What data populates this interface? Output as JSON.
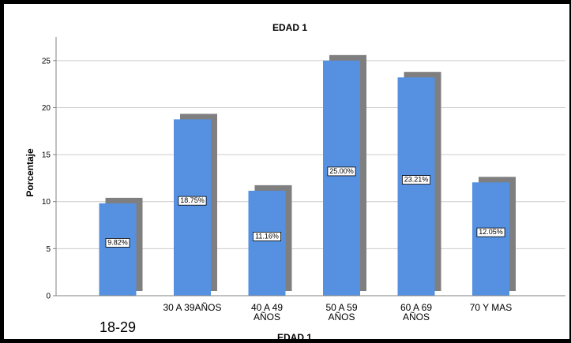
{
  "chart_data": {
    "type": "bar",
    "title": "EDAD 1",
    "xlabel": "EDAD 1",
    "ylabel": "Porcentaje",
    "ylim": [
      0,
      27.5
    ],
    "yticks": [
      0,
      5,
      10,
      15,
      20,
      25
    ],
    "grid": true,
    "legend": "none",
    "bar_style": "3d-shadow",
    "colors": {
      "bar": "#5591e0",
      "shadow": "#7f7f7f",
      "grid": "#cccccc",
      "axis": "#808080"
    },
    "categories": [
      {
        "lines": [
          ""
        ],
        "overlay": "18-29"
      },
      {
        "lines": [
          "30 A 39AÑOS"
        ]
      },
      {
        "lines": [
          "40 A 49",
          "AÑOS"
        ]
      },
      {
        "lines": [
          "50 A 59",
          "AÑOS"
        ]
      },
      {
        "lines": [
          "60 A 69",
          "AÑOS"
        ]
      },
      {
        "lines": [
          "70 Y MAS"
        ]
      }
    ],
    "values": [
      9.82,
      18.75,
      11.16,
      25.0,
      23.21,
      12.05
    ],
    "data_labels": [
      "9.82%",
      "18.75%",
      "11.16%",
      "25.00%",
      "23.21%",
      "12.05%"
    ]
  }
}
